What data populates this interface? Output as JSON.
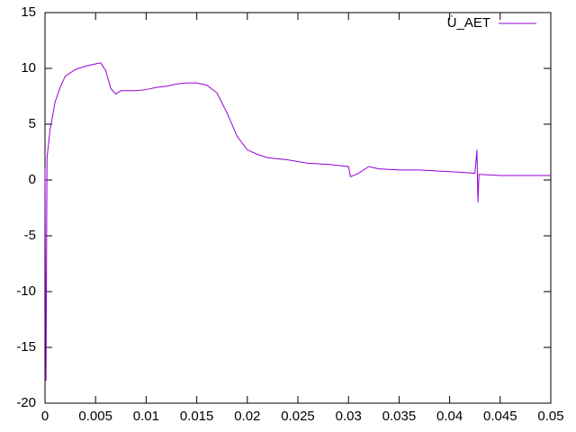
{
  "chart_data": {
    "type": "line",
    "x": [
      0,
      0.0001,
      0.0002,
      0.0005,
      0.001,
      0.0015,
      0.002,
      0.003,
      0.004,
      0.005,
      0.0055,
      0.006,
      0.0065,
      0.007,
      0.0075,
      0.008,
      0.009,
      0.01,
      0.011,
      0.012,
      0.013,
      0.014,
      0.015,
      0.016,
      0.017,
      0.018,
      0.019,
      0.02,
      0.021,
      0.022,
      0.024,
      0.026,
      0.028,
      0.03,
      0.0302,
      0.031,
      0.032,
      0.033,
      0.035,
      0.037,
      0.039,
      0.041,
      0.0425,
      0.0427,
      0.0428,
      0.0429,
      0.045,
      0.047,
      0.05
    ],
    "series": [
      {
        "name": "U̇_AET",
        "color": "#9400d3",
        "values": [
          1,
          -18,
          2,
          4.5,
          7,
          8.3,
          9.3,
          9.9,
          10.2,
          10.4,
          10.5,
          9.8,
          8.2,
          7.7,
          8,
          8,
          8,
          8.1,
          8.3,
          8.4,
          8.6,
          8.7,
          8.7,
          8.5,
          7.8,
          6,
          3.9,
          2.7,
          2.3,
          2,
          1.8,
          1.5,
          1.4,
          1.2,
          0.3,
          0.6,
          1.2,
          1,
          0.9,
          0.9,
          0.8,
          0.7,
          0.6,
          2.7,
          -2,
          0.5,
          0.4,
          0.4,
          0.4
        ]
      }
    ],
    "xlim": [
      0,
      0.05
    ],
    "xticks": [
      0,
      0.005,
      0.01,
      0.015,
      0.02,
      0.025,
      0.03,
      0.035,
      0.04,
      0.045,
      0.05
    ],
    "ylim": [
      -20,
      15
    ],
    "yticks": [
      -20,
      -15,
      -10,
      -5,
      0,
      5,
      10,
      15
    ],
    "legend": "top-right"
  }
}
